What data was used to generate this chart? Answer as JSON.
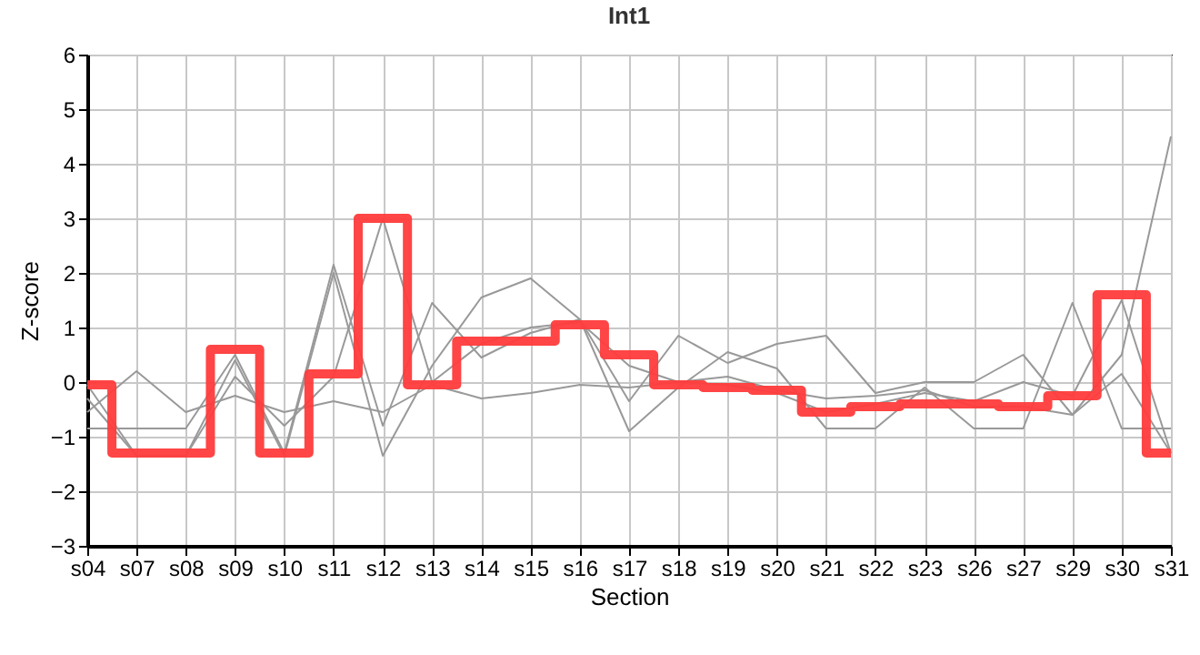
{
  "chart_data": {
    "type": "line",
    "title": "Int1",
    "xlabel": "Section",
    "ylabel": "Z-score",
    "categories": [
      "s04",
      "s07",
      "s08",
      "s09",
      "s10",
      "s11",
      "s12",
      "s13",
      "s14",
      "s15",
      "s16",
      "s17",
      "s18",
      "s19",
      "s20",
      "s21",
      "s22",
      "s23",
      "s26",
      "s27",
      "s29",
      "s30",
      "s31"
    ],
    "series": [
      {
        "type": "line",
        "color": "#999999",
        "values": [
          -0.55,
          0.2,
          -0.55,
          -0.25,
          -0.55,
          -0.35,
          -0.55,
          -0.05,
          -0.3,
          -0.2,
          -0.05,
          -0.1,
          0.0,
          0.1,
          -0.15,
          -0.3,
          -0.25,
          -0.15,
          -0.45,
          -0.45,
          -0.6,
          0.15,
          -1.3
        ]
      },
      {
        "type": "line",
        "color": "#999999",
        "values": [
          -0.85,
          -0.85,
          -0.85,
          0.5,
          -1.3,
          2.15,
          -0.8,
          1.45,
          0.45,
          0.9,
          1.15,
          -0.35,
          0.85,
          0.35,
          0.7,
          0.85,
          -0.2,
          0.0,
          0.0,
          0.5,
          -0.6,
          0.5,
          4.5
        ]
      },
      {
        "type": "line",
        "color": "#999999",
        "values": [
          -0.05,
          -1.35,
          -1.35,
          0.4,
          -1.35,
          2.0,
          -1.35,
          0.3,
          1.55,
          1.9,
          1.15,
          -0.9,
          -0.1,
          0.55,
          0.25,
          -0.85,
          -0.85,
          -0.1,
          -0.85,
          -0.85,
          1.45,
          -0.85,
          -0.85
        ]
      },
      {
        "type": "line",
        "color": "#999999",
        "values": [
          -0.3,
          -1.35,
          -1.35,
          0.1,
          -0.8,
          0.1,
          3.0,
          0.0,
          0.7,
          1.0,
          1.1,
          0.3,
          0.0,
          -0.05,
          -0.2,
          -0.55,
          -0.4,
          -0.2,
          -0.35,
          0.0,
          -0.25,
          1.5,
          -1.3
        ]
      },
      {
        "type": "step",
        "color": "#ff3b3b",
        "values": [
          -0.05,
          -1.3,
          -1.3,
          0.6,
          -1.3,
          0.15,
          3.0,
          -0.05,
          0.75,
          0.75,
          1.05,
          0.5,
          -0.05,
          -0.1,
          -0.15,
          -0.55,
          -0.45,
          -0.4,
          -0.4,
          -0.45,
          -0.25,
          1.6,
          -1.3
        ]
      }
    ],
    "ylim": [
      -3,
      6
    ],
    "yticks": [
      -3,
      -2,
      -1,
      0,
      1,
      2,
      3,
      4,
      5,
      6
    ],
    "grid": true
  }
}
